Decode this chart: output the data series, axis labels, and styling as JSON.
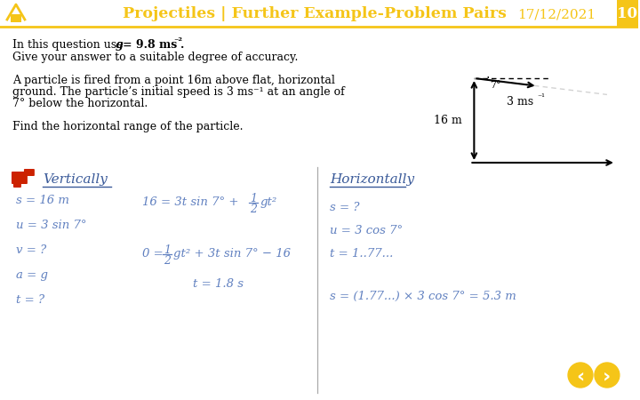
{
  "title": "Projectiles | Further Example-Problem Pairs",
  "date": "17/12/2021",
  "page": "10",
  "header_color": "#F5C518",
  "bg_color": "#FFFFFF",
  "dark_blue": "#3A5A99",
  "eq_blue": "#6080C0",
  "vert_left": [
    "s = 16 m",
    "u = 3 sin 7°",
    "v = ?",
    "a = g",
    "t = ?"
  ],
  "horiz_vars": [
    "s = ?",
    "u = 3 cos 7°",
    "t = 1..77..."
  ],
  "horiz_final": "s = (1.77...) × 3 cos 7° = 5.3 m"
}
